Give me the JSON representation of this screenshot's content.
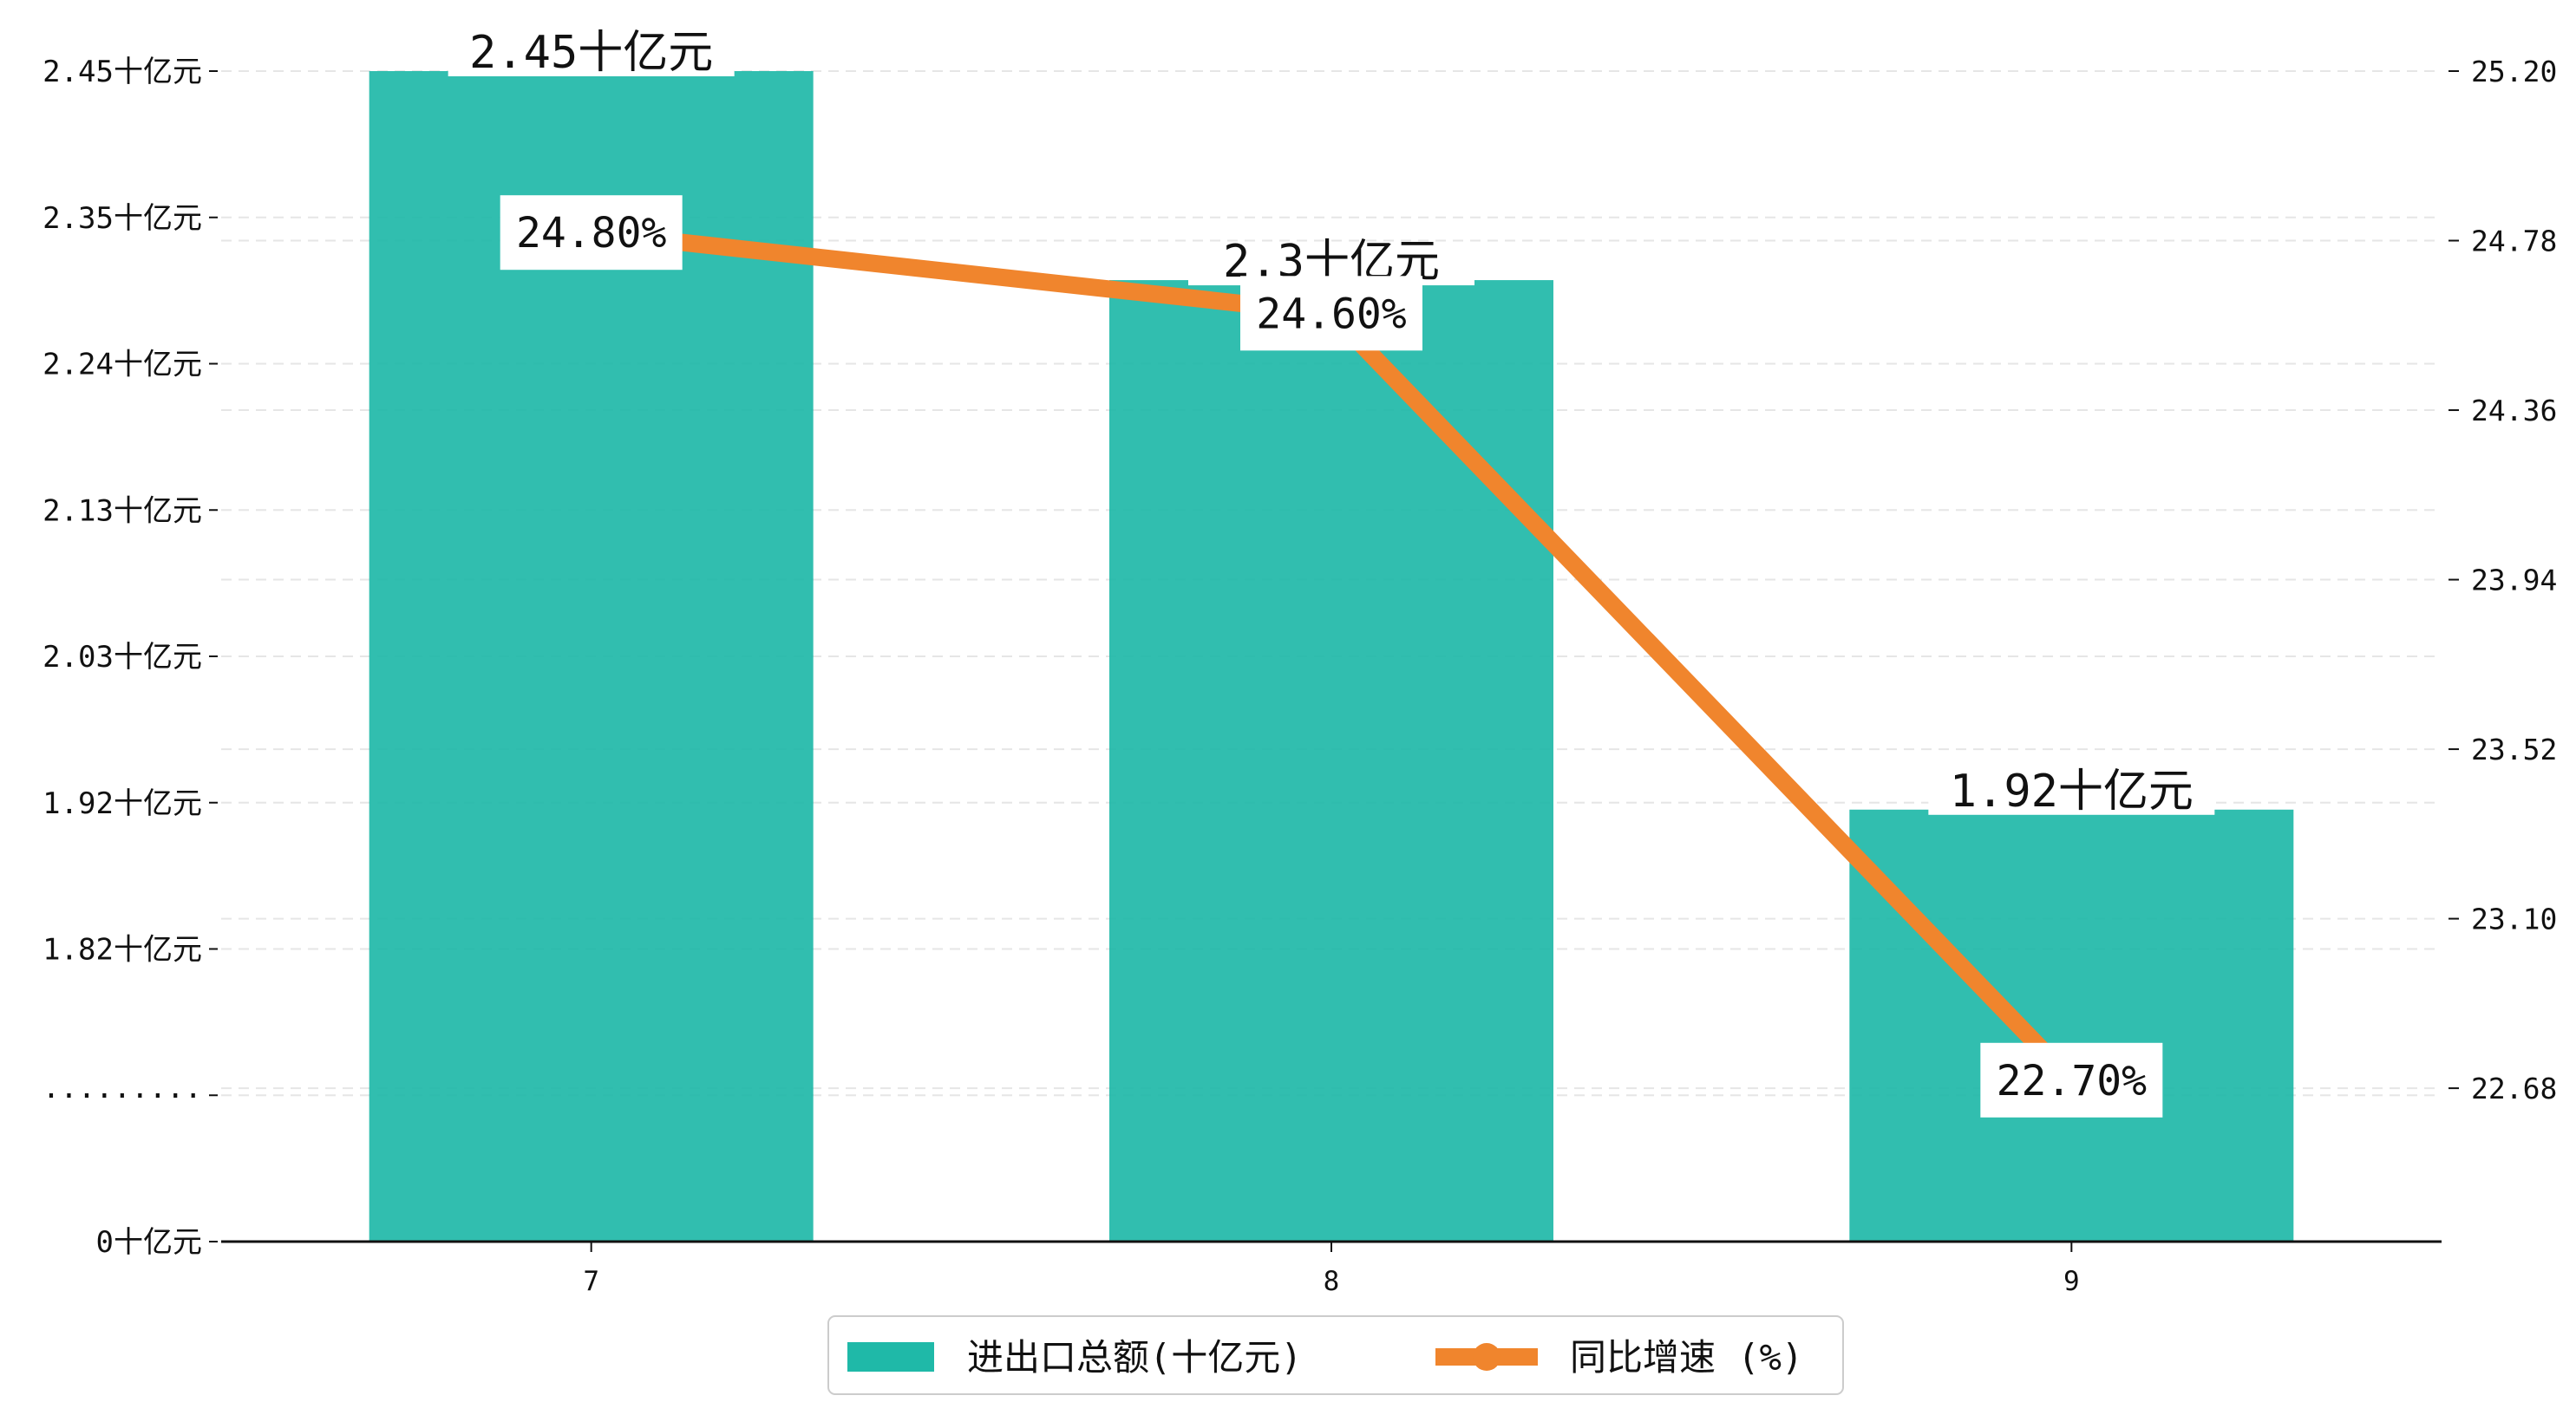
{
  "colors": {
    "bar": "#1FB9A8",
    "line": "#F0852D",
    "grid": "#E6E6E6",
    "axis": "#111111"
  },
  "chart_data": {
    "type": "bar",
    "categories": [
      "7",
      "8",
      "9"
    ],
    "series": [
      {
        "name": "进出口总额(十亿元)",
        "type": "bar",
        "axis": "left",
        "values": [
          2.45,
          2.3,
          1.92
        ],
        "labels": [
          "2.45十亿元",
          "2.3十亿元",
          "1.92十亿元"
        ]
      },
      {
        "name": "同比增速 (%)",
        "type": "line",
        "axis": "right",
        "values": [
          24.8,
          24.6,
          22.7
        ],
        "labels": [
          "24.80%",
          "24.60%",
          "22.70%"
        ]
      }
    ],
    "y_left": {
      "ticks": [
        {
          "value": 2.45,
          "label": "2.45十亿元"
        },
        {
          "value": 2.345,
          "label": "2.35十亿元"
        },
        {
          "value": 2.24,
          "label": "2.24十亿元"
        },
        {
          "value": 2.135,
          "label": "2.13十亿元"
        },
        {
          "value": 2.03,
          "label": "2.03十亿元"
        },
        {
          "value": 1.925,
          "label": "1.92十亿元"
        },
        {
          "value": 1.82,
          "label": "1.82十亿元"
        },
        {
          "value": 1.715,
          "label": "·········"
        },
        {
          "value": 1.61,
          "label": "0十亿元"
        }
      ],
      "range": [
        1.61,
        2.45
      ],
      "break": true
    },
    "y_right": {
      "ticks": [
        25.2,
        24.78,
        24.36,
        23.94,
        23.52,
        23.1,
        22.68
      ],
      "tick_labels": [
        "25.20",
        "24.78",
        "24.36",
        "23.94",
        "23.52",
        "23.10",
        "22.68"
      ],
      "range": [
        22.3,
        25.2
      ]
    },
    "grid": "horizontal dashed",
    "legend": "bottom-center",
    "legend_entries": [
      "进出口总额(十亿元)",
      "同比增速 (%)"
    ]
  }
}
